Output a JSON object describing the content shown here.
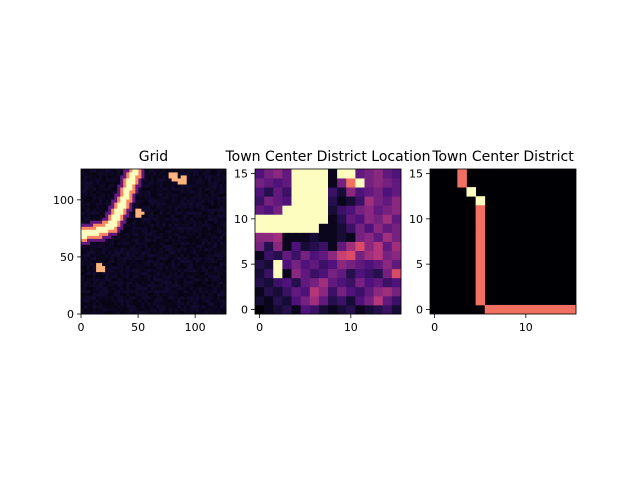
{
  "chart_data": [
    {
      "type": "heatmap",
      "title": "Grid",
      "colormap": "magma",
      "xlim": [
        0,
        127
      ],
      "ylim": [
        0,
        127
      ],
      "xticks": [
        0,
        50,
        100
      ],
      "yticks": [
        0,
        50,
        100
      ],
      "grid_size": 128,
      "features": {
        "ridge_path": [
          [
            0,
            70
          ],
          [
            8,
            72
          ],
          [
            18,
            74
          ],
          [
            27,
            78
          ],
          [
            33,
            90
          ],
          [
            38,
            100
          ],
          [
            42,
            112
          ],
          [
            45,
            120
          ],
          [
            48,
            126
          ]
        ],
        "hot_spots": [
          [
            17,
            41
          ],
          [
            51,
            90
          ],
          [
            82,
            122
          ],
          [
            90,
            118
          ]
        ]
      }
    },
    {
      "type": "heatmap",
      "title": "Town Center District Location",
      "colormap": "magma",
      "xlim": [
        -0.5,
        15.5
      ],
      "ylim": [
        -0.5,
        15.5
      ],
      "xticks": [
        0,
        10
      ],
      "yticks": [
        0,
        5,
        10,
        15
      ],
      "rows_bottom_to_top": [
        [
          0,
          0.05,
          0.1,
          0.15,
          0.05,
          0.25,
          0.2,
          0.1,
          0.05,
          0.1,
          0.15,
          0.05,
          0.1,
          0.15,
          0.2,
          0.1
        ],
        [
          0.1,
          0.05,
          0.15,
          0.1,
          0.25,
          0.35,
          0.45,
          0.3,
          0.15,
          0.2,
          0.1,
          0.25,
          0.35,
          0.5,
          0.3,
          0.2
        ],
        [
          0.05,
          0.15,
          0.1,
          0.2,
          0.3,
          0.25,
          0.5,
          0.4,
          0.2,
          0.35,
          0.25,
          0.2,
          0.3,
          0.4,
          0.45,
          0.35
        ],
        [
          0.15,
          0.1,
          0.2,
          0.25,
          0.15,
          0.3,
          0.35,
          0.45,
          0.3,
          0.25,
          0.2,
          0.35,
          0.25,
          0.3,
          0.2,
          0.25
        ],
        [
          0.1,
          0.2,
          1,
          0.05,
          0.4,
          0.3,
          0.2,
          0.25,
          0.35,
          0.3,
          0.15,
          0.25,
          0.2,
          0.15,
          0.35,
          0.6
        ],
        [
          0.15,
          0.1,
          1,
          0.25,
          0.35,
          0.25,
          0.3,
          0.2,
          0.25,
          0.4,
          0.35,
          0.3,
          0.25,
          0.3,
          0.4,
          0.3
        ],
        [
          0.05,
          0.2,
          0.15,
          0.3,
          0.2,
          0.35,
          0.25,
          0.3,
          0.4,
          0.55,
          0.6,
          0.35,
          0.45,
          0.5,
          0.35,
          0.4
        ],
        [
          0.35,
          0.15,
          0.4,
          0.05,
          0.25,
          0.1,
          0.15,
          0.2,
          0.05,
          0.3,
          0.45,
          0.6,
          0.4,
          0.5,
          0.3,
          0.45
        ],
        [
          0.4,
          0.4,
          0.45,
          0.05,
          0.05,
          0.05,
          0.1,
          0.05,
          0.05,
          0.1,
          0.05,
          0.35,
          0.4,
          0.3,
          0.45,
          0.35
        ],
        [
          1,
          1,
          1,
          1,
          1,
          1,
          1,
          0.05,
          0.05,
          0.1,
          0.2,
          0.35,
          0.25,
          0.4,
          0.3,
          0.35
        ],
        [
          1,
          1,
          1,
          1,
          1,
          1,
          1,
          1,
          0.05,
          0.15,
          0.3,
          0.25,
          0.4,
          0.35,
          0.45,
          0.3
        ],
        [
          0.3,
          0.25,
          0.35,
          1,
          1,
          1,
          1,
          1,
          0.1,
          0.2,
          0.25,
          0.35,
          0.4,
          0.3,
          0.35,
          0.4
        ],
        [
          0.2,
          0.35,
          0.3,
          0.25,
          1,
          1,
          1,
          1,
          0.15,
          0.05,
          0.1,
          0.2,
          0.45,
          0.35,
          0.3,
          0.4
        ],
        [
          0.25,
          0.15,
          0.3,
          0.2,
          1,
          1,
          1,
          1,
          0.2,
          0.1,
          0.4,
          0.25,
          0.3,
          0.35,
          0.25,
          0.3
        ],
        [
          0.35,
          0.3,
          0.25,
          0.3,
          1,
          1,
          1,
          1,
          0.05,
          0.35,
          0.7,
          1,
          0.35,
          0.4,
          0.35,
          0.3
        ],
        [
          0.25,
          0.35,
          0.4,
          0.3,
          1,
          1,
          1,
          1,
          0.05,
          1,
          1,
          0.3,
          0.35,
          0.4,
          0.3,
          0.25
        ]
      ]
    },
    {
      "type": "heatmap",
      "title": "Town Center District",
      "colormap": "magma",
      "xlim": [
        -0.5,
        15.5
      ],
      "ylim": [
        -0.5,
        15.5
      ],
      "xticks": [
        0,
        10
      ],
      "yticks": [
        0,
        5,
        10,
        15
      ],
      "cells": [
        {
          "x": 3,
          "y": 15,
          "v": 0.7
        },
        {
          "x": 3,
          "y": 14,
          "v": 0.7
        },
        {
          "x": 4,
          "y": 13,
          "v": 1
        },
        {
          "x": 5,
          "y": 12,
          "v": 1
        },
        {
          "x": 5,
          "y": 11,
          "v": 0.7
        },
        {
          "x": 5,
          "y": 10,
          "v": 0.7
        },
        {
          "x": 5,
          "y": 9,
          "v": 0.7
        },
        {
          "x": 5,
          "y": 8,
          "v": 0.7
        },
        {
          "x": 5,
          "y": 7,
          "v": 0.7
        },
        {
          "x": 5,
          "y": 6,
          "v": 0.7
        },
        {
          "x": 5,
          "y": 5,
          "v": 0.7
        },
        {
          "x": 5,
          "y": 4,
          "v": 0.7
        },
        {
          "x": 5,
          "y": 3,
          "v": 0.7
        },
        {
          "x": 5,
          "y": 2,
          "v": 0.7
        },
        {
          "x": 5,
          "y": 1,
          "v": 0.7
        },
        {
          "x": 6,
          "y": 0,
          "v": 0.7
        },
        {
          "x": 7,
          "y": 0,
          "v": 0.7
        },
        {
          "x": 8,
          "y": 0,
          "v": 0.7
        },
        {
          "x": 9,
          "y": 0,
          "v": 0.7
        },
        {
          "x": 10,
          "y": 0,
          "v": 0.7
        },
        {
          "x": 11,
          "y": 0,
          "v": 0.7
        },
        {
          "x": 12,
          "y": 0,
          "v": 0.7
        },
        {
          "x": 13,
          "y": 0,
          "v": 0.7
        },
        {
          "x": 14,
          "y": 0,
          "v": 0.7
        },
        {
          "x": 15,
          "y": 0,
          "v": 0.7
        }
      ]
    }
  ]
}
